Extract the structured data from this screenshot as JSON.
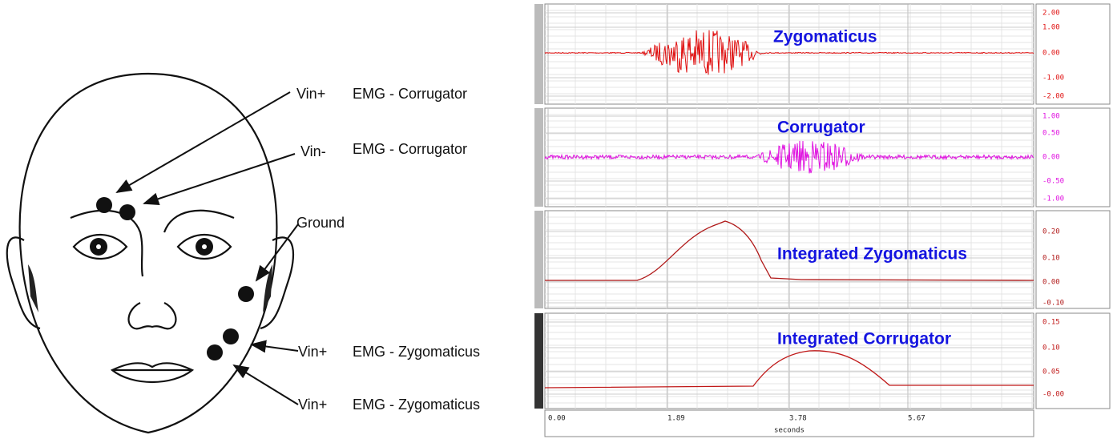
{
  "labels": [
    {
      "prefix": "Vin+",
      "text": "EMG - Corrugator"
    },
    {
      "prefix": "Vin-",
      "text": "EMG - Corrugator"
    },
    {
      "text": "Ground"
    },
    {
      "prefix": "Vin+",
      "text": "EMG - Zygomaticus"
    },
    {
      "prefix": "Vin+",
      "text": "EMG - Zygomaticus"
    }
  ],
  "panels": [
    {
      "title": "Zygomaticus",
      "scale": [
        "2.00",
        "1.00",
        "0.00",
        "-1.00",
        "-2.00"
      ]
    },
    {
      "title": "Corrugator",
      "scale": [
        "1.00",
        "0.50",
        "0.00",
        "-0.50",
        "-1.00"
      ]
    },
    {
      "title": "Integrated Zygomaticus",
      "scale": [
        "0.20",
        "0.10",
        "0.00",
        "-0.10"
      ]
    },
    {
      "title": "Integrated Corrugator",
      "scale": [
        "0.15",
        "0.10",
        "0.05",
        "-0.00"
      ]
    }
  ],
  "time_axis": {
    "ticks": [
      "0.00",
      "1.89",
      "3.78",
      "5.67"
    ],
    "label": "seconds"
  }
}
